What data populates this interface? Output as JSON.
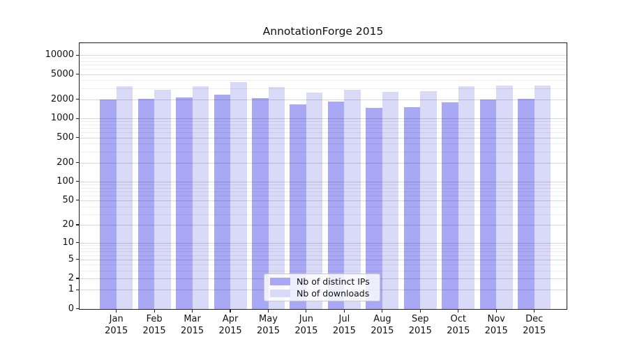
{
  "chart_data": {
    "type": "bar",
    "title": "AnnotationForge 2015",
    "year_label": "2015",
    "categories": [
      "Jan",
      "Feb",
      "Mar",
      "Apr",
      "May",
      "Jun",
      "Jul",
      "Aug",
      "Sep",
      "Oct",
      "Nov",
      "Dec"
    ],
    "series": [
      {
        "name": "Nb of distinct IPs",
        "color": "#a8a8f5",
        "values": [
          1980,
          2030,
          2150,
          2390,
          2090,
          1670,
          1860,
          1470,
          1510,
          1790,
          1980,
          2050
        ]
      },
      {
        "name": "Nb of downloads",
        "color": "#d9d9f8",
        "values": [
          3190,
          2830,
          3240,
          3715,
          3160,
          2580,
          2830,
          2610,
          2710,
          3250,
          3330,
          3330
        ]
      }
    ],
    "y_scale": "log10(1+x)",
    "y_ticks": [
      0,
      1,
      2,
      5,
      10,
      20,
      50,
      100,
      200,
      500,
      1000,
      2000,
      5000,
      10000
    ],
    "y_minor_ticks": [
      3,
      4,
      6,
      7,
      8,
      9,
      30,
      40,
      60,
      70,
      80,
      90,
      300,
      400,
      600,
      700,
      800,
      900,
      3000,
      4000,
      6000,
      7000,
      8000,
      9000
    ],
    "ylim_top_log": 4.188,
    "grid": true,
    "legend_position": "lower center (inside plot)"
  }
}
